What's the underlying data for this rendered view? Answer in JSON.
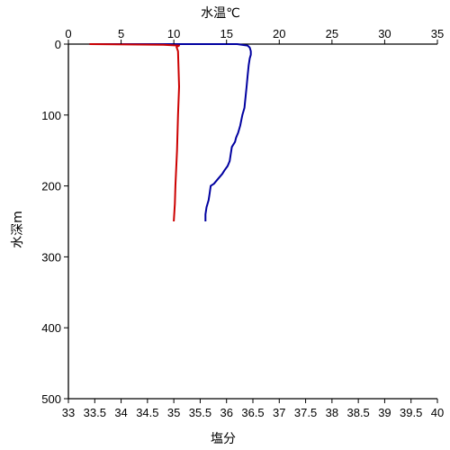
{
  "chart_data": {
    "type": "line",
    "title": "",
    "x_top": {
      "label": "水温℃",
      "label_color": "#0000a0",
      "range": [
        0,
        35
      ],
      "ticks": [
        0,
        5,
        10,
        15,
        20,
        25,
        30,
        35
      ]
    },
    "x_bottom": {
      "label": "塩分",
      "label_color": "#cc0000",
      "range": [
        33,
        40
      ],
      "ticks": [
        33,
        33.5,
        34,
        34.5,
        35,
        35.5,
        36,
        36.5,
        37,
        37.5,
        38,
        38.5,
        39,
        39.5,
        40
      ]
    },
    "y": {
      "label": "水深m",
      "range": [
        0,
        500
      ],
      "inverted": true,
      "ticks": [
        0,
        100,
        200,
        300,
        400,
        500
      ]
    },
    "grid": false,
    "series": [
      {
        "axis": "top",
        "color": "#0000a0",
        "points": [
          [
            2,
            0
          ],
          [
            16,
            0
          ],
          [
            17,
            2
          ],
          [
            17.2,
            5
          ],
          [
            17.3,
            10
          ],
          [
            17.3,
            15
          ],
          [
            17.2,
            20
          ],
          [
            17.1,
            30
          ],
          [
            17.0,
            45
          ],
          [
            16.9,
            60
          ],
          [
            16.8,
            75
          ],
          [
            16.7,
            90
          ],
          [
            16.5,
            100
          ],
          [
            16.3,
            115
          ],
          [
            16.1,
            125
          ],
          [
            15.9,
            132
          ],
          [
            15.8,
            138
          ],
          [
            15.5,
            145
          ],
          [
            15.4,
            155
          ],
          [
            15.3,
            165
          ],
          [
            15.1,
            172
          ],
          [
            14.8,
            178
          ],
          [
            14.6,
            183
          ],
          [
            14.2,
            190
          ],
          [
            13.8,
            197
          ],
          [
            13.5,
            200
          ],
          [
            13.4,
            210
          ],
          [
            13.3,
            220
          ],
          [
            13.1,
            230
          ],
          [
            13.0,
            240
          ],
          [
            13.0,
            250
          ]
        ]
      },
      {
        "axis": "bottom",
        "color": "#cc0000",
        "points": [
          [
            33.4,
            0
          ],
          [
            34.8,
            1
          ],
          [
            35.1,
            2
          ],
          [
            35.05,
            4
          ],
          [
            35.08,
            10
          ],
          [
            35.1,
            60
          ],
          [
            35.08,
            100
          ],
          [
            35.06,
            150
          ],
          [
            35.03,
            200
          ],
          [
            35.02,
            225
          ],
          [
            35.0,
            250
          ]
        ]
      }
    ]
  }
}
